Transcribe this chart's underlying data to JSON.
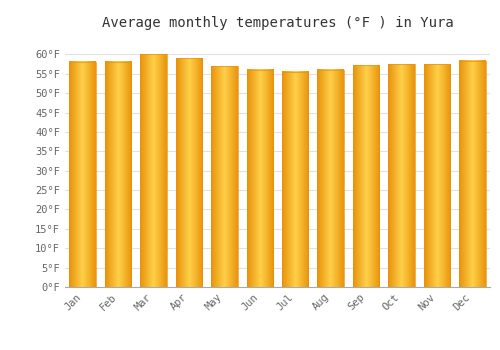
{
  "title": "Average monthly temperatures (°F ) in Yura",
  "months": [
    "Jan",
    "Feb",
    "Mar",
    "Apr",
    "May",
    "Jun",
    "Jul",
    "Aug",
    "Sep",
    "Oct",
    "Nov",
    "Dec"
  ],
  "values": [
    58.1,
    58.1,
    60.0,
    59.0,
    57.0,
    56.0,
    55.5,
    56.0,
    57.2,
    57.5,
    57.5,
    58.3
  ],
  "bar_color_center": "#FFD04A",
  "bar_color_edge": "#E8920A",
  "background_color": "#FFFFFF",
  "grid_color": "#E0E0E8",
  "ylim": [
    0,
    65
  ],
  "yticks": [
    0,
    5,
    10,
    15,
    20,
    25,
    30,
    35,
    40,
    45,
    50,
    55,
    60
  ],
  "tick_label_suffix": "°F",
  "title_fontsize": 10,
  "tick_fontsize": 7.5,
  "title_font": "monospace",
  "tick_font": "monospace"
}
